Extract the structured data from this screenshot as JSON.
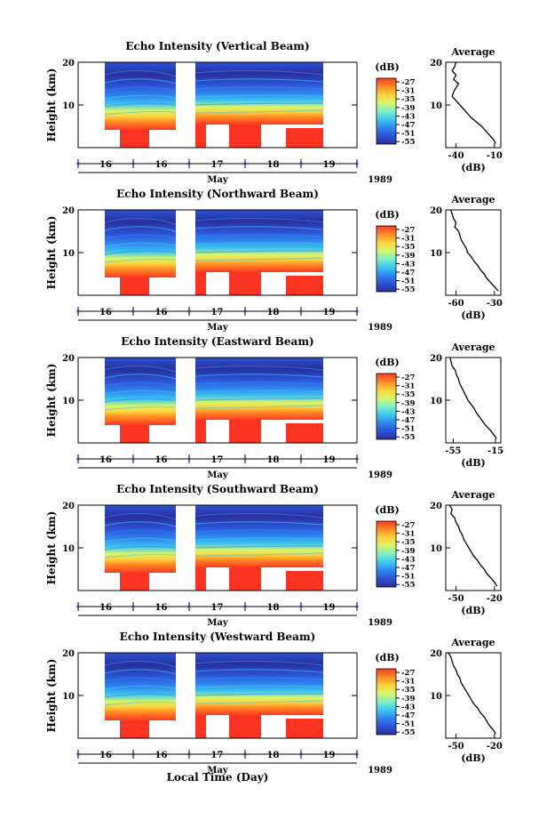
{
  "figure": {
    "xlabel_bottom": "Local Time (Day)",
    "month": "May",
    "year": "1989"
  },
  "colorbar": {
    "unit": "(dB)",
    "ticks": [
      "-27",
      "-31",
      "-35",
      "-39",
      "-43",
      "-47",
      "-51",
      "-55"
    ]
  },
  "colors": {
    "scale": [
      "#2a2f9a",
      "#2b52d6",
      "#2f86f0",
      "#3cc7ee",
      "#7ff0c4",
      "#d8f56a",
      "#ffd23a",
      "#ff8a25",
      "#ff3a22"
    ],
    "saturated": "#ff3322"
  },
  "chart_data": [
    {
      "type": "heatmap",
      "title": "Echo Intensity (Vertical Beam)",
      "ylabel": "Height (km)",
      "x_ticks": [
        "16",
        "16",
        "17",
        "18",
        "19"
      ],
      "y_ticks": [
        "20",
        "10"
      ],
      "ylim": [
        0,
        20
      ],
      "zlim": [
        -55,
        -27
      ],
      "average": {
        "title": "Average",
        "xlabel": "(dB)",
        "xticks": [
          "-40",
          "-10"
        ],
        "xlim": [
          -48,
          -5
        ],
        "profile": [
          [
            20,
            -40
          ],
          [
            19,
            -41
          ],
          [
            18,
            -43
          ],
          [
            17,
            -40
          ],
          [
            16,
            -42
          ],
          [
            15,
            -38
          ],
          [
            14,
            -40
          ],
          [
            13,
            -42
          ],
          [
            12,
            -43
          ],
          [
            11,
            -40
          ],
          [
            10,
            -37
          ],
          [
            9,
            -34
          ],
          [
            8,
            -31
          ],
          [
            7,
            -28
          ],
          [
            6,
            -24
          ],
          [
            5,
            -20
          ],
          [
            4,
            -17
          ],
          [
            3,
            -14
          ],
          [
            2,
            -11
          ],
          [
            1,
            -9
          ]
        ]
      }
    },
    {
      "type": "heatmap",
      "title": "Echo Intensity (Northward Beam)",
      "ylabel": "Height (km)",
      "x_ticks": [
        "16",
        "16",
        "17",
        "18",
        "19"
      ],
      "y_ticks": [
        "20",
        "10"
      ],
      "ylim": [
        0,
        20
      ],
      "zlim": [
        -55,
        -27
      ],
      "average": {
        "title": "Average",
        "xlabel": "(dB)",
        "xticks": [
          "-60",
          "-30"
        ],
        "xlim": [
          -68,
          -25
        ],
        "profile": [
          [
            20,
            -64
          ],
          [
            19,
            -63
          ],
          [
            18,
            -62
          ],
          [
            17,
            -60
          ],
          [
            16,
            -61
          ],
          [
            15,
            -58
          ],
          [
            14,
            -57
          ],
          [
            13,
            -56
          ],
          [
            12,
            -54
          ],
          [
            11,
            -52
          ],
          [
            10,
            -51
          ],
          [
            9,
            -48
          ],
          [
            8,
            -46
          ],
          [
            7,
            -43
          ],
          [
            6,
            -41
          ],
          [
            5,
            -38
          ],
          [
            4,
            -36
          ],
          [
            3,
            -33
          ],
          [
            2,
            -30
          ],
          [
            1,
            -27
          ]
        ]
      }
    },
    {
      "type": "heatmap",
      "title": "Echo Intensity (Eastward Beam)",
      "ylabel": "Height (km)",
      "x_ticks": [
        "16",
        "16",
        "17",
        "18",
        "19"
      ],
      "y_ticks": [
        "20",
        "10"
      ],
      "ylim": [
        0,
        20
      ],
      "zlim": [
        -55,
        -27
      ],
      "average": {
        "title": "Average",
        "xlabel": "(dB)",
        "xticks": [
          "-55",
          "-15"
        ],
        "xlim": [
          -62,
          -10
        ],
        "profile": [
          [
            20,
            -58
          ],
          [
            19,
            -57
          ],
          [
            18,
            -56
          ],
          [
            17,
            -53
          ],
          [
            16,
            -52
          ],
          [
            15,
            -50
          ],
          [
            14,
            -49
          ],
          [
            13,
            -47
          ],
          [
            12,
            -45
          ],
          [
            11,
            -43
          ],
          [
            10,
            -41
          ],
          [
            9,
            -38
          ],
          [
            8,
            -35
          ],
          [
            7,
            -33
          ],
          [
            6,
            -30
          ],
          [
            5,
            -27
          ],
          [
            4,
            -24
          ],
          [
            3,
            -20
          ],
          [
            2,
            -17
          ],
          [
            1,
            -14
          ]
        ]
      }
    },
    {
      "type": "heatmap",
      "title": "Echo Intensity (Southward Beam)",
      "ylabel": "Height (km)",
      "x_ticks": [
        "16",
        "16",
        "17",
        "18",
        "19"
      ],
      "y_ticks": [
        "20",
        "10"
      ],
      "ylim": [
        0,
        20
      ],
      "zlim": [
        -55,
        -27
      ],
      "average": {
        "title": "Average",
        "xlabel": "(dB)",
        "xticks": [
          "-50",
          "-20"
        ],
        "xlim": [
          -58,
          -15
        ],
        "profile": [
          [
            20,
            -55
          ],
          [
            19,
            -53
          ],
          [
            18,
            -54
          ],
          [
            17,
            -51
          ],
          [
            16,
            -50
          ],
          [
            15,
            -48
          ],
          [
            14,
            -47
          ],
          [
            13,
            -45
          ],
          [
            12,
            -44
          ],
          [
            11,
            -42
          ],
          [
            10,
            -40
          ],
          [
            9,
            -38
          ],
          [
            8,
            -36
          ],
          [
            7,
            -33
          ],
          [
            6,
            -31
          ],
          [
            5,
            -28
          ],
          [
            4,
            -26
          ],
          [
            3,
            -23
          ],
          [
            2,
            -20
          ],
          [
            1,
            -18
          ]
        ]
      }
    },
    {
      "type": "heatmap",
      "title": "Echo Intensity (Westward Beam)",
      "ylabel": "Height (km)",
      "x_ticks": [
        "16",
        "16",
        "17",
        "18",
        "19"
      ],
      "y_ticks": [
        "20",
        "10"
      ],
      "ylim": [
        0,
        20
      ],
      "zlim": [
        -55,
        -27
      ],
      "average": {
        "title": "Average",
        "xlabel": "(dB)",
        "xticks": [
          "-50",
          "-20"
        ],
        "xlim": [
          -58,
          -15
        ],
        "profile": [
          [
            20,
            -56
          ],
          [
            19,
            -54
          ],
          [
            18,
            -53
          ],
          [
            17,
            -52
          ],
          [
            16,
            -50
          ],
          [
            15,
            -49
          ],
          [
            14,
            -47
          ],
          [
            13,
            -46
          ],
          [
            12,
            -44
          ],
          [
            11,
            -42
          ],
          [
            10,
            -40
          ],
          [
            9,
            -38
          ],
          [
            8,
            -36
          ],
          [
            7,
            -33
          ],
          [
            6,
            -31
          ],
          [
            5,
            -28
          ],
          [
            4,
            -26
          ],
          [
            3,
            -24
          ],
          [
            2,
            -21
          ],
          [
            1,
            -19
          ]
        ]
      }
    }
  ]
}
